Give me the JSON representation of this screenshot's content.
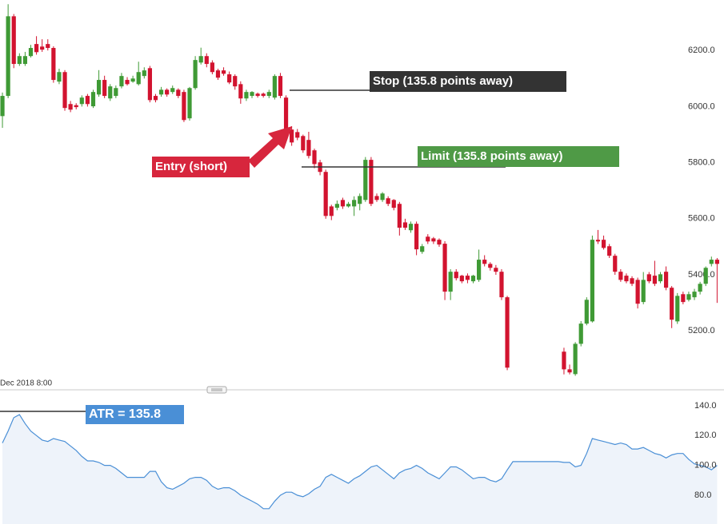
{
  "chart_data": [
    {
      "type": "candlestick",
      "x_label": "Dec 2018 8:00",
      "annotations": [
        "Stop (135.8 points away)",
        "Limit (135.8 points away)",
        "Entry (short)"
      ],
      "up_color": "#3f9a35",
      "down_color": "#d2132f",
      "ylim": [
        4990,
        6380
      ],
      "yticks": [
        {
          "value": 5200,
          "label": "5200.0"
        },
        {
          "value": 5400,
          "label": "5400.0"
        },
        {
          "value": 5600,
          "label": "5600.0"
        },
        {
          "value": 5800,
          "label": "5800.0"
        },
        {
          "value": 6000,
          "label": "6000.0"
        },
        {
          "value": 6200,
          "label": "6200.0"
        }
      ],
      "open": [
        5966,
        6038,
        6322,
        6152,
        6152,
        6180,
        6223,
        6214,
        6223,
        6209,
        6089,
        6123,
        6009,
        6005,
        6009,
        6038,
        6001,
        6043,
        6095,
        6029,
        6038,
        6072,
        6095,
        6089,
        6080,
        6109,
        6137,
        6038,
        6043,
        6060,
        6052,
        6060,
        6052,
        5958,
        6066,
        6157,
        6180,
        6157,
        6129,
        6129,
        6115,
        6109,
        6080,
        6029,
        6038,
        6046,
        6046,
        6038,
        6032,
        6109,
        6032,
        5918,
        5909,
        5895,
        5881,
        5844,
        5801,
        5767,
        5644,
        5639,
        5667,
        5644,
        5644,
        5653,
        5667,
        5810,
        5681,
        5667,
        5673,
        5667,
        5653,
        5587,
        5559,
        5582,
        5482,
        5536,
        5530,
        5525,
        5511,
        5340,
        5411,
        5397,
        5397,
        5377,
        5382,
        5454,
        5439,
        5425,
        5411,
        5320,
        null,
        null,
        null,
        null,
        null,
        null,
        null,
        null,
        null,
        5126,
        5063,
        5046,
        5154,
        5226,
        5234,
        5525,
        5525,
        5502,
        5468,
        5411,
        5397,
        5388,
        5382,
        5303,
        5402,
        5397,
        5377,
        5411,
        5354,
        5234,
        5331,
        5311,
        5320,
        5340,
        5368,
        5439,
        5454
      ],
      "high": [
        6050,
        6365,
        6330,
        6190,
        6195,
        6220,
        6251,
        6240,
        6240,
        6215,
        6135,
        6130,
        6020,
        6012,
        6040,
        6045,
        6060,
        6130,
        6110,
        6080,
        6075,
        6120,
        6105,
        6110,
        6160,
        6140,
        6145,
        6045,
        6070,
        6065,
        6075,
        6065,
        6060,
        6070,
        6180,
        6210,
        6190,
        6165,
        6135,
        6140,
        6125,
        6115,
        6090,
        6060,
        6055,
        6050,
        6050,
        6060,
        6115,
        6120,
        6040,
        5930,
        5920,
        5900,
        5910,
        5850,
        5810,
        5775,
        5650,
        5665,
        5675,
        5660,
        5680,
        5690,
        5820,
        5820,
        5690,
        5695,
        5680,
        5670,
        5660,
        5600,
        5590,
        5590,
        5510,
        5545,
        5535,
        5530,
        5520,
        5420,
        5420,
        5400,
        5405,
        5400,
        5490,
        5470,
        5445,
        5435,
        5420,
        5325,
        null,
        null,
        null,
        null,
        null,
        null,
        null,
        null,
        null,
        5140,
        5080,
        5160,
        5235,
        5320,
        5540,
        5560,
        5540,
        5510,
        5475,
        5420,
        5405,
        5395,
        5390,
        5410,
        5410,
        5450,
        5410,
        5430,
        5360,
        5335,
        5340,
        5340,
        5350,
        5375,
        5430,
        5465,
        5460
      ],
      "low": [
        5924,
        6030,
        6137,
        6145,
        6145,
        6175,
        6185,
        6195,
        6200,
        6085,
        6080,
        5985,
        5980,
        5990,
        6000,
        6000,
        5995,
        6035,
        6030,
        6020,
        6030,
        6065,
        6075,
        6085,
        6075,
        6100,
        6015,
        6015,
        6035,
        6035,
        6045,
        6030,
        5945,
        5950,
        6060,
        6150,
        6140,
        6115,
        6095,
        6110,
        6080,
        6060,
        6010,
        6020,
        6030,
        6032,
        6032,
        6030,
        6025,
        6030,
        5910,
        5860,
        5880,
        5835,
        5815,
        5780,
        5755,
        5600,
        5595,
        5630,
        5635,
        5640,
        5610,
        5630,
        5660,
        5645,
        5660,
        5660,
        5645,
        5630,
        5540,
        5560,
        5550,
        5470,
        5475,
        5510,
        5510,
        5500,
        5310,
        5310,
        5380,
        5370,
        5370,
        5370,
        5375,
        5430,
        5415,
        5400,
        5310,
        5060,
        null,
        null,
        null,
        null,
        null,
        null,
        null,
        null,
        null,
        5045,
        5045,
        5040,
        5145,
        5220,
        5230,
        5510,
        5490,
        5460,
        5400,
        5375,
        5370,
        5360,
        5280,
        5295,
        5370,
        5360,
        5370,
        5345,
        5210,
        5225,
        5295,
        5305,
        5310,
        5330,
        5360,
        5430,
        5300
      ],
      "close": [
        6038,
        6322,
        6152,
        6180,
        6180,
        6209,
        6194,
        6203,
        6209,
        6095,
        6123,
        5995,
        5989,
        5998,
        6032,
        6009,
        6052,
        6095,
        6038,
        6072,
        6066,
        6109,
        6080,
        6100,
        6123,
        6129,
        6023,
        6023,
        6060,
        6043,
        6066,
        6038,
        5952,
        6066,
        6166,
        6180,
        6152,
        6123,
        6103,
        6117,
        6086,
        6072,
        6029,
        6052,
        6052,
        6038,
        6038,
        6052,
        6109,
        6038,
        5918,
        5872,
        5889,
        5844,
        5824,
        5795,
        5767,
        5610,
        5610,
        5653,
        5644,
        5653,
        5667,
        5681,
        5810,
        5653,
        5667,
        5690,
        5653,
        5639,
        5568,
        5568,
        5582,
        5491,
        5502,
        5519,
        5519,
        5508,
        5340,
        5411,
        5388,
        5377,
        5382,
        5397,
        5454,
        5439,
        5425,
        5411,
        5320,
        5069,
        null,
        null,
        null,
        null,
        null,
        null,
        null,
        null,
        null,
        5063,
        5052,
        5154,
        5226,
        5311,
        5525,
        5519,
        5496,
        5468,
        5411,
        5382,
        5377,
        5368,
        5297,
        5382,
        5377,
        5368,
        5402,
        5354,
        5240,
        5325,
        5303,
        5331,
        5340,
        5368,
        5425,
        5454,
        5439
      ]
    },
    {
      "type": "line",
      "annotation": "ATR = 135.8",
      "color": "#4a8fd6",
      "fill": "#eef3fa",
      "ylim": [
        60.7,
        149.6
      ],
      "yticks": [
        {
          "value": 80,
          "label": "80.0"
        },
        {
          "value": 100,
          "label": "100.0"
        },
        {
          "value": 120,
          "label": "120.0"
        },
        {
          "value": 140,
          "label": "140.0"
        }
      ],
      "values": [
        115,
        123,
        132,
        134,
        128,
        123,
        120,
        117,
        116,
        118,
        117,
        116,
        113,
        110,
        106,
        103,
        103,
        102,
        100,
        100,
        98,
        95,
        92,
        92,
        92,
        92,
        96,
        96,
        89,
        85,
        84,
        86,
        88,
        91,
        92,
        92,
        90,
        86,
        84,
        85,
        85,
        83,
        80,
        78,
        76,
        74,
        71,
        71,
        76,
        80,
        82,
        82,
        80,
        79,
        81,
        84,
        86,
        92,
        94,
        92,
        90,
        88,
        91,
        93,
        96,
        99,
        100,
        97,
        94,
        91,
        95,
        97,
        98,
        100,
        98,
        95,
        93,
        91,
        95,
        99,
        99,
        97,
        94,
        91,
        92,
        92,
        90,
        89,
        91,
        97,
        102.5,
        102.5,
        102.5,
        102.5,
        102.5,
        102.5,
        102.5,
        102.5,
        102.5,
        102,
        102,
        99,
        100,
        108,
        118,
        117,
        116,
        115,
        114,
        115,
        114,
        111,
        111,
        112,
        110,
        108,
        107,
        105,
        107,
        108,
        108,
        104,
        101,
        100,
        99,
        97,
        100
      ]
    }
  ]
}
